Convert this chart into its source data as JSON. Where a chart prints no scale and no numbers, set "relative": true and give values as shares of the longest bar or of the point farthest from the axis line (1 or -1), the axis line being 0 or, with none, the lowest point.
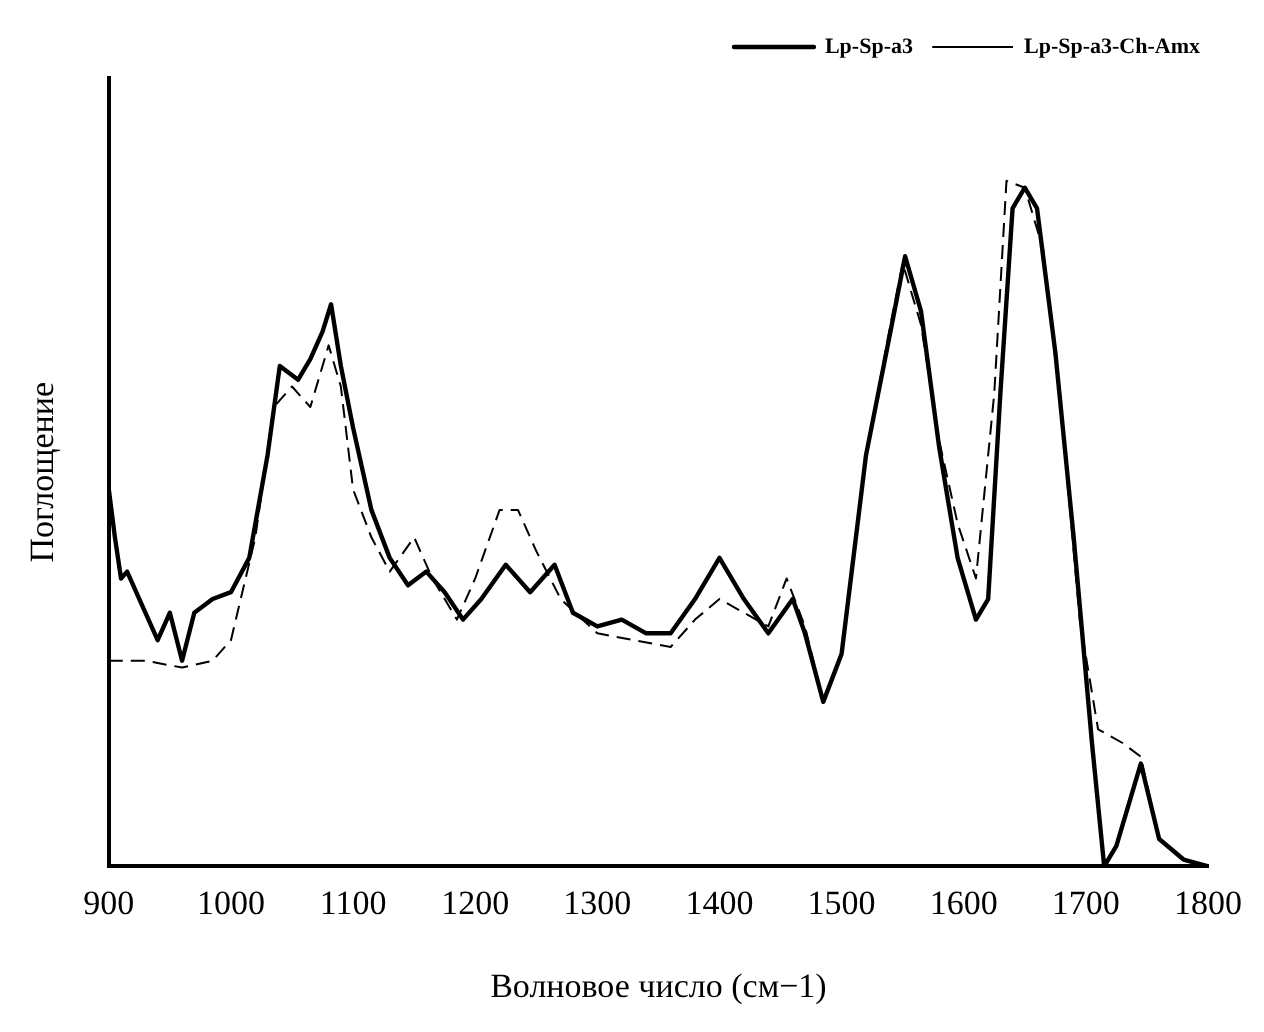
{
  "chart_data": {
    "type": "line",
    "xlabel": "Волновое число (см−1)",
    "ylabel": "Поглощение",
    "relative": true,
    "xlim": [
      900,
      1800
    ],
    "xticks": [
      900,
      1000,
      1100,
      1200,
      1300,
      1400,
      1500,
      1600,
      1700,
      1800
    ],
    "grid": false,
    "legend": "top right",
    "marker": "none",
    "series": [
      {
        "name": "Lp-Sp-a3",
        "color": "#000000",
        "line_style": "solid",
        "x": [
          900,
          905,
          910,
          915,
          925,
          940,
          950,
          960,
          970,
          985,
          1000,
          1015,
          1030,
          1040,
          1055,
          1065,
          1075,
          1082,
          1090,
          1100,
          1115,
          1130,
          1145,
          1160,
          1175,
          1190,
          1205,
          1225,
          1245,
          1265,
          1280,
          1300,
          1320,
          1340,
          1360,
          1380,
          1400,
          1420,
          1440,
          1460,
          1470,
          1485,
          1500,
          1520,
          1540,
          1552,
          1565,
          1580,
          1595,
          1610,
          1620,
          1630,
          1640,
          1650,
          1660,
          1675,
          1690,
          1705,
          1715,
          1725,
          1745,
          1760,
          1780,
          1800
        ],
        "values": [
          0.55,
          0.48,
          0.42,
          0.43,
          0.39,
          0.33,
          0.37,
          0.3,
          0.37,
          0.39,
          0.4,
          0.45,
          0.6,
          0.73,
          0.71,
          0.74,
          0.78,
          0.82,
          0.73,
          0.64,
          0.52,
          0.45,
          0.41,
          0.43,
          0.4,
          0.36,
          0.39,
          0.44,
          0.4,
          0.44,
          0.37,
          0.35,
          0.36,
          0.34,
          0.34,
          0.39,
          0.45,
          0.39,
          0.34,
          0.39,
          0.34,
          0.24,
          0.31,
          0.6,
          0.78,
          0.89,
          0.81,
          0.61,
          0.45,
          0.36,
          0.39,
          0.69,
          0.96,
          0.99,
          0.96,
          0.75,
          0.48,
          0.18,
          0,
          0.03,
          0.15,
          0.04,
          0.01,
          0
        ]
      },
      {
        "name": "Lp-Sp-a3-Ch-Amx",
        "color": "#000000",
        "line_style": "dashed",
        "x": [
          900,
          930,
          960,
          985,
          1000,
          1020,
          1035,
          1050,
          1065,
          1080,
          1090,
          1100,
          1115,
          1130,
          1150,
          1165,
          1185,
          1200,
          1220,
          1235,
          1250,
          1270,
          1300,
          1330,
          1360,
          1380,
          1400,
          1420,
          1440,
          1455,
          1470,
          1485,
          1500,
          1520,
          1540,
          1550,
          1565,
          1580,
          1595,
          1610,
          1625,
          1635,
          1650,
          1665,
          1680,
          1695,
          1710,
          1730,
          1745,
          1760,
          1780,
          1800
        ],
        "values": [
          0.3,
          0.3,
          0.29,
          0.3,
          0.33,
          0.48,
          0.67,
          0.7,
          0.67,
          0.76,
          0.7,
          0.55,
          0.48,
          0.43,
          0.48,
          0.42,
          0.36,
          0.42,
          0.52,
          0.52,
          0.46,
          0.39,
          0.34,
          0.33,
          0.32,
          0.36,
          0.39,
          0.37,
          0.35,
          0.42,
          0.35,
          0.24,
          0.31,
          0.6,
          0.79,
          0.88,
          0.79,
          0.62,
          0.5,
          0.42,
          0.69,
          1,
          0.99,
          0.9,
          0.66,
          0.36,
          0.2,
          0.18,
          0.16,
          0.04,
          0.01,
          0
        ]
      }
    ]
  }
}
